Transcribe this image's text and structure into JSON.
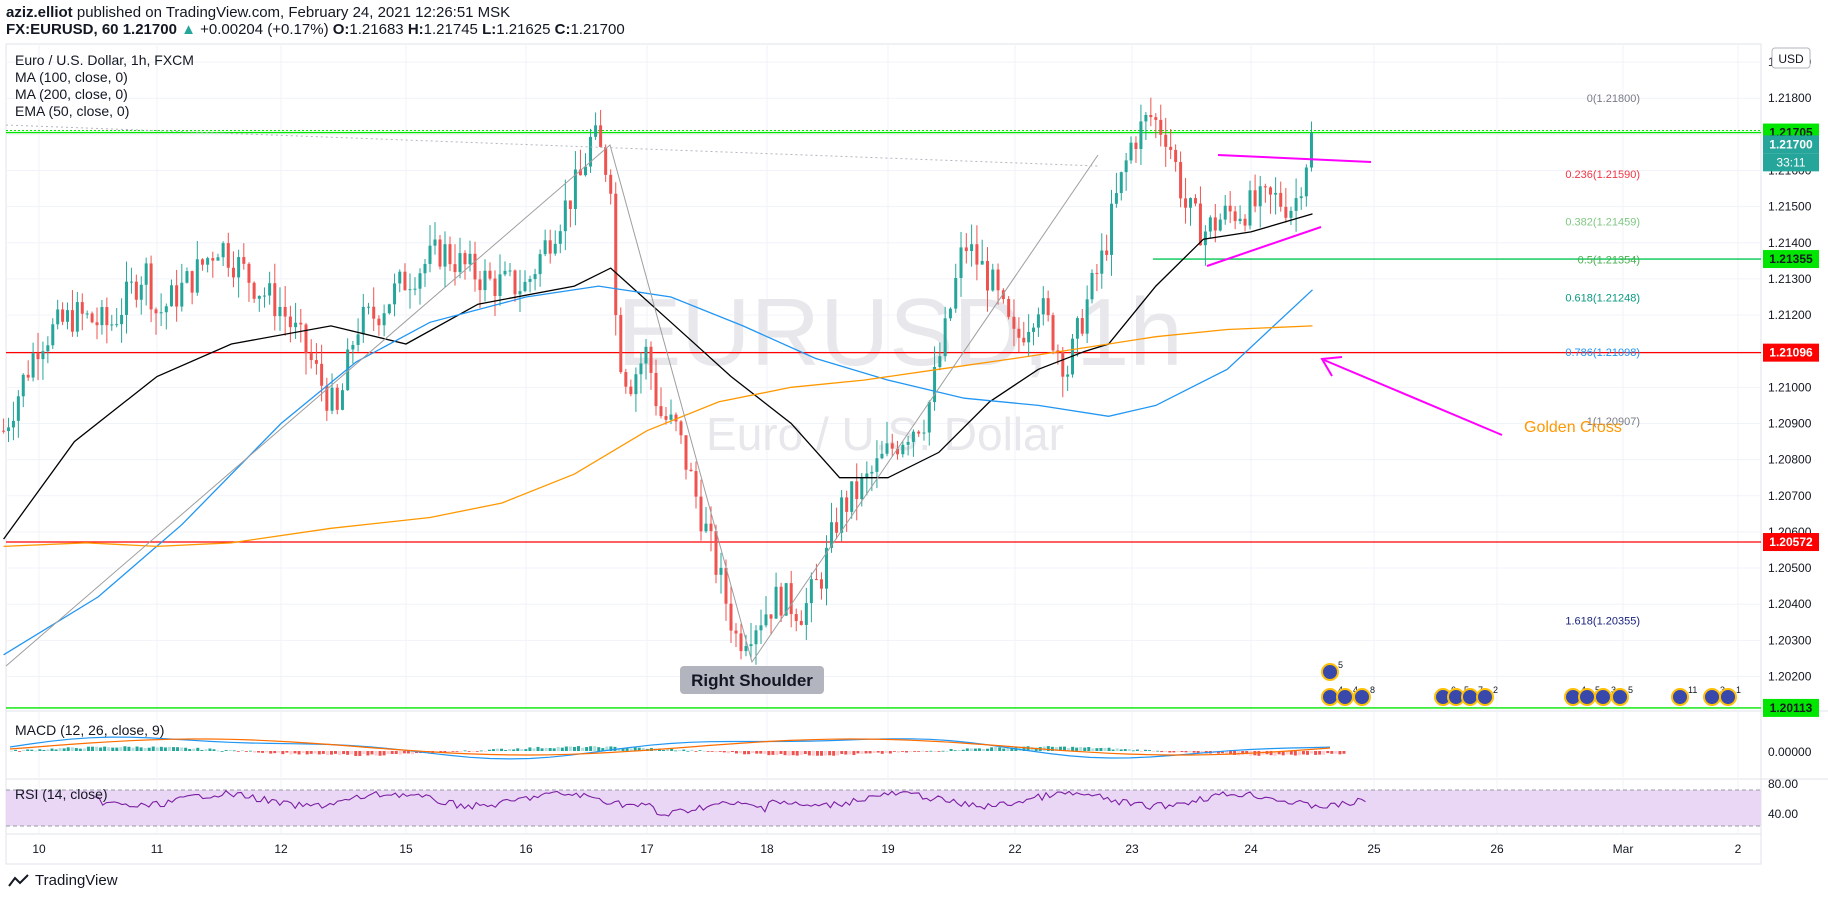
{
  "header": {
    "author": "aziz.elliot",
    "published_text": "published on TradingView.com, February 24, 2021 12:26:51 MSK",
    "symbol_line": "FX:EURUSD, 60",
    "last_price": "1.21700",
    "change": "+0.00204 (+0.17%)",
    "ohlc": {
      "o_label": "O:",
      "o": "1.21683",
      "h_label": "H:",
      "h": "1.21745",
      "l_label": "L:",
      "l": "1.21625",
      "c_label": "C:",
      "c": "1.21700"
    }
  },
  "legend": {
    "title": "Euro / U.S. Dollar, 1h, FXCM",
    "ma100": "MA (100, close, 0)",
    "ma200": "MA (200, close, 0)",
    "ema50": "EMA (50, close, 0)",
    "macd": "MACD (12, 26, close, 9)",
    "rsi": "RSI (14, close)"
  },
  "watermark": {
    "symbol": "EURUSD, 1h",
    "name": "Euro / U.S. Dollar"
  },
  "currency": "USD",
  "countdown": "33:11",
  "footer": {
    "brand": "TradingView"
  },
  "colors": {
    "up": "#26a69a",
    "down": "#ef5350",
    "ema50": "#000000",
    "ma100": "#2196f3",
    "ma200": "#ff9800",
    "support_green": "#00e600",
    "resistance_red": "#ff0000",
    "pattern": "#ff00ff",
    "annotation_orange": "#ff9800",
    "rsi_band": "#ead7f6",
    "rsi_line": "#7b1fa2"
  },
  "chart_data": {
    "type": "candlestick",
    "title": "Euro / U.S. Dollar, 1h, FXCM",
    "ylim": [
      1.2011,
      1.2195
    ],
    "y_ticks": [
      "1.21900",
      "1.21800",
      "1.21700",
      "1.21600",
      "1.21500",
      "1.21400",
      "1.21300",
      "1.21200",
      "1.21100",
      "1.21000",
      "1.20900",
      "1.20800",
      "1.20700",
      "1.20600",
      "1.20500",
      "1.20400",
      "1.20300",
      "1.20200"
    ],
    "x_ticks": [
      "10",
      "11",
      "12",
      "15",
      "16",
      "17",
      "18",
      "19",
      "22",
      "23",
      "24",
      "25",
      "26",
      "Mar",
      "2"
    ],
    "price_tags": [
      {
        "value": 1.21705,
        "label": "1.21705",
        "color": "#26a69a"
      },
      {
        "value": 1.217,
        "label": "1.21700",
        "color": "#26a69a"
      },
      {
        "value": 1.21355,
        "label": "1.21355",
        "color": "#26a69a"
      },
      {
        "value": 1.21096,
        "label": "1.21096",
        "color": "#ff0000"
      },
      {
        "value": 1.20572,
        "label": "1.20572",
        "color": "#ff0000"
      },
      {
        "value": 1.20113,
        "label": "1.20113",
        "color": "#26a69a"
      }
    ],
    "fib_levels": [
      {
        "label": "0(1.21800)",
        "value": 1.218,
        "color": "#787b86"
      },
      {
        "label": "0.236(1.21590)",
        "value": 1.2159,
        "color": "#f23645"
      },
      {
        "label": "0.382(1.21459)",
        "value": 1.21459,
        "color": "#81c784"
      },
      {
        "label": "0.5(1.21354)",
        "value": 1.21354,
        "color": "#4caf50"
      },
      {
        "label": "0.618(1.21248)",
        "value": 1.21248,
        "color": "#089981"
      },
      {
        "label": "0.786(1.21098)",
        "value": 1.21098,
        "color": "#2196f3"
      },
      {
        "label": "1(1.20907)",
        "value": 1.20907,
        "color": "#787b86"
      },
      {
        "label": "1.618(1.20355)",
        "value": 1.20355,
        "color": "#1a237e"
      }
    ],
    "annotations": {
      "right_shoulder": "Right Shoulder",
      "golden_cross": "Golden Cross"
    },
    "rsi_levels": [
      "80.00",
      "40.00"
    ],
    "macd_level": "0.00000",
    "event_labels": [
      "5",
      "4",
      "4",
      "8",
      "6",
      "5",
      "7",
      "2",
      "4",
      "5",
      "3",
      "5",
      "11",
      "3",
      "1"
    ],
    "x_days": [
      0,
      1,
      2,
      3,
      4,
      5,
      6,
      7,
      8,
      9,
      10,
      11,
      12,
      13,
      14
    ],
    "close_path": [
      [
        -0.3,
        1.2088
      ],
      [
        0.0,
        1.2113
      ],
      [
        0.3,
        1.212
      ],
      [
        0.6,
        1.2117
      ],
      [
        0.9,
        1.2133
      ],
      [
        1.0,
        1.212
      ],
      [
        1.3,
        1.2131
      ],
      [
        1.5,
        1.214
      ],
      [
        1.8,
        1.2128
      ],
      [
        2.0,
        1.2122
      ],
      [
        2.2,
        1.211
      ],
      [
        2.45,
        1.2092
      ],
      [
        2.6,
        1.2117
      ],
      [
        2.75,
        1.212
      ],
      [
        2.95,
        1.2128
      ],
      [
        3.0,
        1.213
      ],
      [
        3.3,
        1.2138
      ],
      [
        3.5,
        1.2133
      ],
      [
        3.7,
        1.2129
      ],
      [
        4.0,
        1.2128
      ],
      [
        4.2,
        1.2142
      ],
      [
        4.45,
        1.2158
      ],
      [
        4.55,
        1.217
      ],
      [
        4.7,
        1.2158
      ],
      [
        4.75,
        1.2112
      ],
      [
        4.85,
        1.2101
      ],
      [
        5.0,
        1.211
      ],
      [
        5.1,
        1.2093
      ],
      [
        5.25,
        1.2088
      ],
      [
        5.45,
        1.2065
      ],
      [
        5.6,
        1.2048
      ],
      [
        5.75,
        1.203
      ],
      [
        5.9,
        1.2035
      ],
      [
        6.1,
        1.2042
      ],
      [
        6.3,
        1.2038
      ],
      [
        6.45,
        1.2048
      ],
      [
        6.6,
        1.2066
      ],
      [
        6.8,
        1.2073
      ],
      [
        7.0,
        1.2082
      ],
      [
        7.15,
        1.2088
      ],
      [
        7.3,
        1.2092
      ],
      [
        7.45,
        1.2115
      ],
      [
        7.6,
        1.214
      ],
      [
        7.8,
        1.213
      ],
      [
        8.0,
        1.2112
      ],
      [
        8.2,
        1.2124
      ],
      [
        8.35,
        1.2112
      ],
      [
        8.45,
        1.2105
      ],
      [
        8.6,
        1.2122
      ],
      [
        8.75,
        1.2136
      ],
      [
        8.85,
        1.215
      ],
      [
        9.0,
        1.2168
      ],
      [
        9.15,
        1.2175
      ],
      [
        9.3,
        1.217
      ],
      [
        9.45,
        1.215
      ],
      [
        9.6,
        1.2143
      ],
      [
        9.8,
        1.2148
      ],
      [
        10.0,
        1.215
      ],
      [
        10.2,
        1.2152
      ],
      [
        10.35,
        1.215
      ],
      [
        10.5,
        1.217
      ]
    ],
    "series": [
      {
        "name": "EMA (50, close, 0)",
        "color": "#000000",
        "points": [
          [
            -0.3,
            1.2058
          ],
          [
            0.3,
            1.2085
          ],
          [
            1.0,
            1.2103
          ],
          [
            1.6,
            1.2112
          ],
          [
            2.4,
            1.2117
          ],
          [
            3.0,
            1.2112
          ],
          [
            3.6,
            1.2123
          ],
          [
            4.4,
            1.2128
          ],
          [
            4.7,
            1.2133
          ],
          [
            5.2,
            1.2118
          ],
          [
            5.7,
            1.2103
          ],
          [
            6.2,
            1.209
          ],
          [
            6.6,
            1.2075
          ],
          [
            7.0,
            1.2075
          ],
          [
            7.4,
            1.2082
          ],
          [
            7.8,
            1.2096
          ],
          [
            8.2,
            1.2105
          ],
          [
            8.6,
            1.211
          ],
          [
            8.8,
            1.2112
          ],
          [
            9.2,
            1.2128
          ],
          [
            9.6,
            1.2141
          ],
          [
            10.0,
            1.2143
          ],
          [
            10.5,
            1.2148
          ]
        ]
      },
      {
        "name": "MA (100, close, 0)",
        "color": "#2196f3",
        "points": [
          [
            -0.3,
            1.2026
          ],
          [
            0.5,
            1.2042
          ],
          [
            1.2,
            1.2062
          ],
          [
            2.0,
            1.209
          ],
          [
            2.6,
            1.2107
          ],
          [
            3.2,
            1.2118
          ],
          [
            4.0,
            1.2125
          ],
          [
            4.6,
            1.2128
          ],
          [
            5.2,
            1.2125
          ],
          [
            5.8,
            1.2117
          ],
          [
            6.4,
            1.2108
          ],
          [
            7.0,
            1.2102
          ],
          [
            7.6,
            1.2097
          ],
          [
            8.2,
            1.2095
          ],
          [
            8.8,
            1.2092
          ],
          [
            9.2,
            1.2095
          ],
          [
            9.8,
            1.2105
          ],
          [
            10.5,
            1.2127
          ]
        ]
      },
      {
        "name": "MA (200, close, 0)",
        "color": "#ff9800",
        "points": [
          [
            -0.3,
            1.2056
          ],
          [
            0.4,
            1.2057
          ],
          [
            1.0,
            1.2056
          ],
          [
            1.6,
            1.2057
          ],
          [
            2.4,
            1.2061
          ],
          [
            3.2,
            1.2064
          ],
          [
            3.8,
            1.2068
          ],
          [
            4.4,
            1.2076
          ],
          [
            5.0,
            1.2088
          ],
          [
            5.6,
            1.2096
          ],
          [
            6.2,
            1.21
          ],
          [
            6.8,
            1.2102
          ],
          [
            7.4,
            1.2105
          ],
          [
            8.0,
            1.2108
          ],
          [
            8.6,
            1.2111
          ],
          [
            9.2,
            1.2114
          ],
          [
            9.8,
            1.2116
          ],
          [
            10.5,
            1.2117
          ]
        ]
      }
    ]
  }
}
